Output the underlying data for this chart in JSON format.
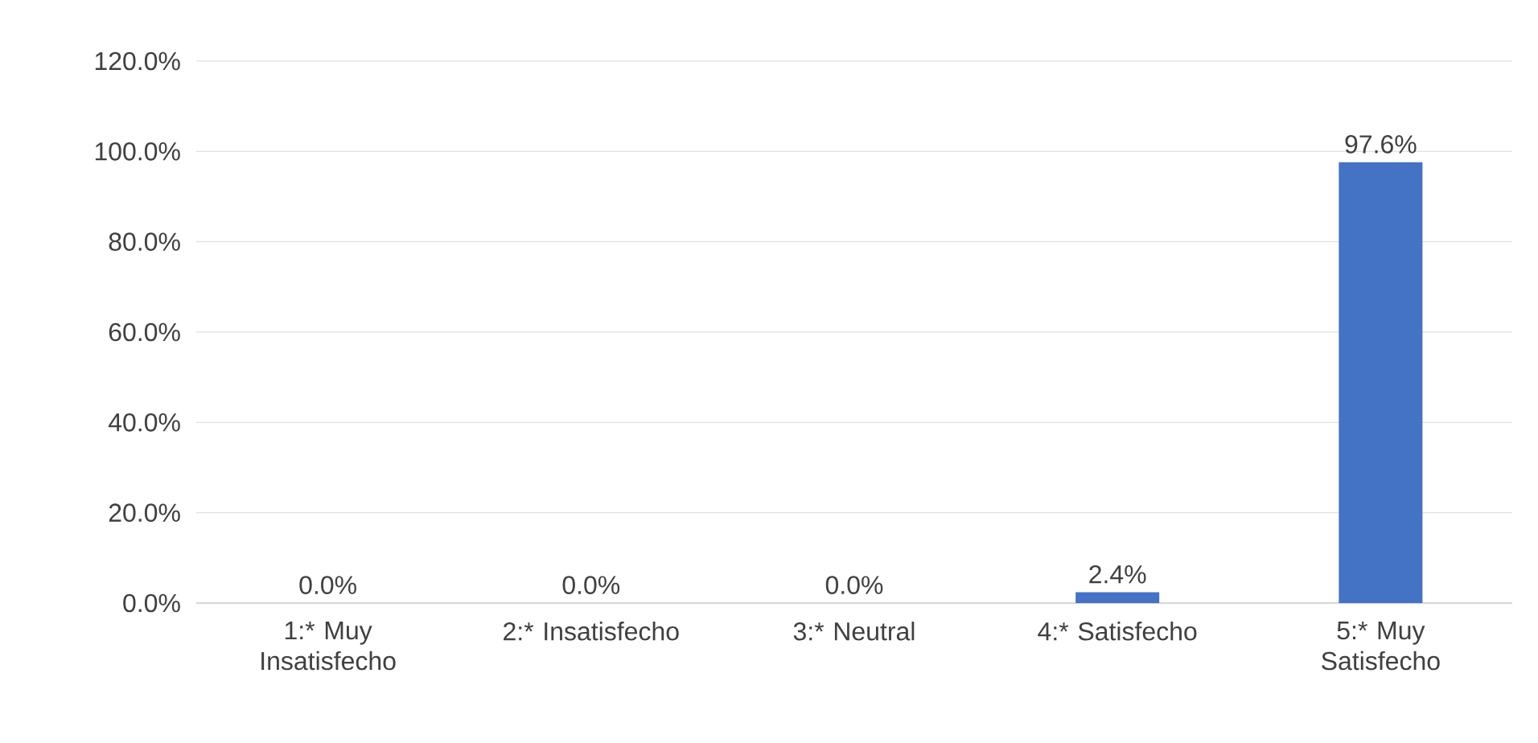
{
  "chart_data": {
    "type": "bar",
    "categories": [
      "1:* Muy Insatisfecho",
      "2:* Insatisfecho",
      "3:* Neutral",
      "4:* Satisfecho",
      "5:* Muy Satisfecho"
    ],
    "values": [
      0,
      0,
      0,
      2.4,
      97.6
    ],
    "value_labels": [
      "0.0%",
      "0.0%",
      "0.0%",
      "2.4%",
      "97.6%"
    ],
    "color": "#4472c4",
    "ylim": [
      0,
      120
    ],
    "yticks": [
      {
        "value": 0,
        "label": "0.0%"
      },
      {
        "value": 20,
        "label": "20.0%"
      },
      {
        "value": 40,
        "label": "40.0%"
      },
      {
        "value": 60,
        "label": "60.0%"
      },
      {
        "value": 80,
        "label": "80.0%"
      },
      {
        "value": 100,
        "label": "100.0%"
      },
      {
        "value": 120,
        "label": "120.0%"
      }
    ],
    "grid": "y"
  }
}
